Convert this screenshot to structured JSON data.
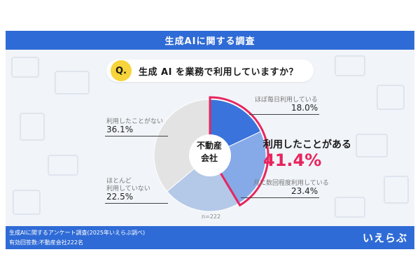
{
  "header": {
    "title": "生成AIに関する調査"
  },
  "question": {
    "badge": "Q.",
    "text": "生成 AI を業務で利用していますか？"
  },
  "center_label": {
    "line1": "不動産",
    "line2": "会社"
  },
  "highlight": {
    "label": "利用したことがある",
    "value": "41.4%"
  },
  "sample_size": "n=222",
  "footer": {
    "line1": "生成AIに関するアンケート調査(2025年いえらぶ調べ)",
    "line2": "有効回答数:不動産会社222名",
    "logo": "いえらぶ"
  },
  "colors": {
    "dark_blue": "#3a73db",
    "mid_blue": "#86a9e8",
    "light_blue": "#b4c8e8",
    "gray": "#e3e3e3",
    "highlight_pink": "#e8245e",
    "title_bar": "#2f6bd6"
  },
  "chart_data": {
    "type": "pie",
    "n": 222,
    "slices": [
      {
        "label": "ほぼ毎日利用している",
        "value": 18.0,
        "value_text": "18.0%",
        "color": "#3a73db"
      },
      {
        "label": "月に数回程度利用している",
        "value": 23.4,
        "value_text": "23.4%",
        "color": "#86a9e8"
      },
      {
        "label": "ほとんど利用していない",
        "label_line1": "ほとんど",
        "label_line2": "利用していない",
        "value": 22.5,
        "value_text": "22.5%",
        "color": "#b4c8e8"
      },
      {
        "label": "利用したことがない",
        "value": 36.1,
        "value_text": "36.1%",
        "color": "#e3e3e3"
      }
    ],
    "grouped": {
      "label": "利用したことがある",
      "value": 41.4,
      "members": [
        "ほぼ毎日利用している",
        "月に数回程度利用している"
      ]
    }
  }
}
